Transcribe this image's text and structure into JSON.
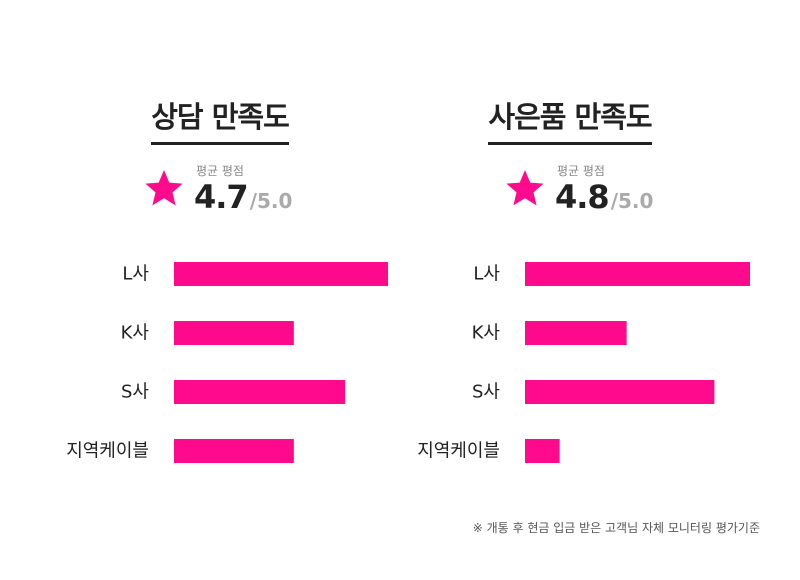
{
  "panels": [
    {
      "title": "상담 만족도",
      "score_label": "평균 평점",
      "score": "4.7",
      "score_max": "/5.0"
    },
    {
      "title": "사은품 만족도",
      "score_label": "평균 평점",
      "score": "4.8",
      "score_max": "/5.0"
    }
  ],
  "chart_data": [
    {
      "type": "bar",
      "orientation": "horizontal",
      "title": "상담 만족도",
      "categories": [
        "L사",
        "K사",
        "S사",
        "지역케이블"
      ],
      "values": [
        100,
        56,
        80,
        56
      ],
      "xlim": [
        0,
        100
      ],
      "grid": false,
      "color": "#ff0a8c"
    },
    {
      "type": "bar",
      "orientation": "horizontal",
      "title": "사은품 만족도",
      "categories": [
        "L사",
        "K사",
        "S사",
        "지역케이블"
      ],
      "values": [
        100,
        44,
        82,
        15
      ],
      "xlim": [
        0,
        100
      ],
      "grid": false,
      "color": "#ff0a8c"
    }
  ],
  "footnote": "※ 개통 후 현금 입금 받은 고객님 자체 모니터링 평가기준",
  "colors": {
    "accent": "#ff0a8c",
    "text": "#222222",
    "muted": "#aaaaaa"
  }
}
